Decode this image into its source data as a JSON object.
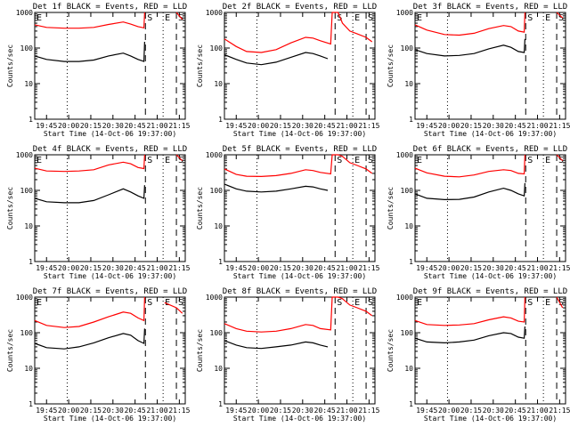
{
  "chart_data": {
    "type": "line",
    "layout": {
      "rows": 3,
      "cols": 3
    },
    "x_tick_labels": [
      "19:45",
      "20:00",
      "20:15",
      "20:30",
      "20:45",
      "21:00",
      "21:15"
    ],
    "x_label": "Start Time (14-Oct-06 19:37:00)",
    "y_label": "Counts/sec",
    "y_scale": "log",
    "ylim": [
      1,
      1000
    ],
    "y_tick_labels": [
      "1",
      "10",
      "100",
      "1000"
    ],
    "x_range_minutes": [
      0,
      102
    ],
    "x_ticks_minutes": [
      8,
      23,
      38,
      53,
      68,
      83,
      98
    ],
    "colors": {
      "events": "#000000",
      "lld": "#ff0000"
    },
    "markers": [
      {
        "label": "E",
        "x_minutes": 0,
        "style": "dotted"
      },
      {
        "label": "S",
        "x_minutes": 75,
        "style": "dashed"
      },
      {
        "label": "E",
        "x_minutes": 87,
        "style": "dotted"
      },
      {
        "label": "S",
        "x_minutes": 96,
        "style": "dashed"
      }
    ],
    "panels": [
      {
        "title": "Det 1f BLACK = Events, RED = LLD",
        "markers_shown": [
          0,
          1,
          2,
          3
        ],
        "dot_x": 22,
        "series": [
          {
            "name": "BLACK = Events",
            "x": [
              0,
              8,
              20,
              30,
              40,
              50,
              60,
              65,
              70,
              74,
              74.5
            ],
            "values": [
              60,
              48,
              42,
              42,
              46,
              60,
              72,
              60,
              48,
              42,
              150
            ]
          },
          {
            "name": "RED = LLD",
            "x": [
              0,
              8,
              20,
              30,
              40,
              50,
              60,
              65,
              70,
              74,
              74.5
            ],
            "values": [
              450,
              380,
              360,
              360,
              380,
              460,
              540,
              470,
              400,
              370,
              1000
            ],
            "extra": {
              "x": [
                96,
                100
              ],
              "values": [
                1000,
                640
              ]
            }
          }
        ]
      },
      {
        "title": "Det 2f BLACK = Events, RED = LLD",
        "markers_shown": [
          1,
          2,
          3
        ],
        "dot_x": 22,
        "series": [
          {
            "name": "BLACK = Events",
            "x": [
              0,
              8,
              15,
              25,
              35,
              45,
              55,
              60,
              65,
              70
            ],
            "values": [
              65,
              48,
              38,
              34,
              40,
              55,
              75,
              70,
              60,
              50
            ]
          },
          {
            "name": "RED = LLD",
            "x": [
              0,
              8,
              15,
              25,
              35,
              45,
              55,
              60,
              65,
              72,
              73,
              77,
              80,
              85,
              90,
              96,
              100
            ],
            "values": [
              180,
              110,
              80,
              75,
              90,
              140,
              200,
              190,
              160,
              130,
              1000,
              1000,
              500,
              300,
              250,
              200,
              150
            ]
          }
        ]
      },
      {
        "title": "Det 3f BLACK = Events, RED = LLD",
        "markers_shown": [
          0,
          1,
          2,
          3
        ],
        "dot_x": 22,
        "series": [
          {
            "name": "BLACK = Events",
            "x": [
              0,
              8,
              20,
              30,
              40,
              50,
              60,
              65,
              70,
              74,
              74.5
            ],
            "values": [
              90,
              70,
              60,
              62,
              70,
              95,
              120,
              105,
              80,
              75,
              180
            ]
          },
          {
            "name": "RED = LLD",
            "x": [
              0,
              8,
              20,
              30,
              40,
              50,
              60,
              65,
              70,
              74,
              74.5
            ],
            "values": [
              450,
              320,
              240,
              230,
              260,
              350,
              430,
              400,
              300,
              280,
              1000
            ],
            "extra": {
              "x": [
                96,
                100
              ],
              "values": [
                1000,
                700
              ]
            }
          }
        ]
      },
      {
        "title": "Det 4f BLACK = Events, RED = LLD",
        "markers_shown": [
          0,
          1,
          2,
          3
        ],
        "dot_x": 22,
        "series": [
          {
            "name": "BLACK = Events",
            "x": [
              0,
              8,
              20,
              30,
              40,
              50,
              60,
              65,
              70,
              74,
              74.5
            ],
            "values": [
              60,
              48,
              45,
              45,
              52,
              75,
              110,
              90,
              70,
              60,
              140
            ]
          },
          {
            "name": "RED = LLD",
            "x": [
              0,
              8,
              20,
              30,
              40,
              50,
              60,
              65,
              70,
              74,
              74.5
            ],
            "values": [
              420,
              350,
              340,
              350,
              380,
              520,
              620,
              560,
              440,
              410,
              1000
            ],
            "extra": {
              "x": [
                96,
                100
              ],
              "values": [
                1000,
                680
              ]
            }
          }
        ]
      },
      {
        "title": "Det 5f BLACK = Events, RED = LLD",
        "markers_shown": [
          1,
          2,
          3
        ],
        "dot_x": 22,
        "series": [
          {
            "name": "BLACK = Events",
            "x": [
              0,
              8,
              15,
              25,
              35,
              45,
              55,
              60,
              65,
              70
            ],
            "values": [
              150,
              110,
              95,
              90,
              95,
              110,
              130,
              125,
              110,
              100
            ]
          },
          {
            "name": "RED = LLD",
            "x": [
              0,
              8,
              15,
              25,
              35,
              45,
              55,
              60,
              65,
              72,
              73,
              77,
              80,
              85,
              90,
              96,
              100
            ],
            "values": [
              400,
              280,
              250,
              245,
              260,
              300,
              380,
              360,
              320,
              290,
              1000,
              1000,
              900,
              600,
              500,
              400,
              300
            ]
          }
        ]
      },
      {
        "title": "Det 6f BLACK = Events, RED = LLD",
        "markers_shown": [
          0,
          1,
          2,
          3
        ],
        "dot_x": 22,
        "series": [
          {
            "name": "BLACK = Events",
            "x": [
              0,
              8,
              20,
              30,
              40,
              50,
              60,
              65,
              70,
              74,
              74.5
            ],
            "values": [
              80,
              60,
              55,
              56,
              65,
              90,
              115,
              100,
              80,
              70,
              160
            ]
          },
          {
            "name": "RED = LLD",
            "x": [
              0,
              8,
              20,
              30,
              40,
              50,
              60,
              65,
              70,
              74,
              74.5
            ],
            "values": [
              420,
              310,
              250,
              240,
              270,
              340,
              380,
              360,
              300,
              290,
              1000
            ],
            "extra": {
              "x": [
                96,
                100
              ],
              "values": [
                1000,
                680
              ]
            }
          }
        ]
      },
      {
        "title": "Det 7f BLACK = Events, RED = LLD",
        "markers_shown": [
          0,
          1,
          2,
          3
        ],
        "dot_x": 22,
        "series": [
          {
            "name": "BLACK = Events",
            "x": [
              0,
              8,
              20,
              30,
              40,
              50,
              60,
              65,
              70,
              74,
              74.5
            ],
            "values": [
              50,
              38,
              35,
              40,
              52,
              72,
              95,
              85,
              60,
              50,
              130
            ]
          },
          {
            "name": "RED = LLD",
            "x": [
              0,
              8,
              20,
              30,
              40,
              50,
              60,
              65,
              70,
              74,
              74.5
            ],
            "values": [
              220,
              160,
              140,
              150,
              200,
              280,
              380,
              350,
              260,
              220,
              1000
            ],
            "extra": {
              "x": [
                88,
                96,
                100
              ],
              "values": [
                700,
                500,
                350
              ]
            }
          }
        ]
      },
      {
        "title": "Det 8f BLACK = Events, RED = LLD",
        "markers_shown": [
          1,
          2,
          3
        ],
        "dot_x": 22,
        "series": [
          {
            "name": "BLACK = Events",
            "x": [
              0,
              8,
              15,
              25,
              35,
              45,
              55,
              60,
              65,
              70
            ],
            "values": [
              60,
              45,
              38,
              36,
              40,
              45,
              55,
              52,
              45,
              40
            ]
          },
          {
            "name": "RED = LLD",
            "x": [
              0,
              8,
              15,
              25,
              35,
              45,
              55,
              60,
              65,
              72,
              73,
              77,
              80,
              85,
              90,
              96,
              100
            ],
            "values": [
              180,
              130,
              110,
              105,
              110,
              130,
              170,
              160,
              130,
              120,
              1000,
              1000,
              900,
              600,
              500,
              400,
              300
            ]
          }
        ]
      },
      {
        "title": "Det 9f BLACK = Events, RED = LLD",
        "markers_shown": [
          0,
          1,
          2,
          3
        ],
        "dot_x": 22,
        "series": [
          {
            "name": "BLACK = Events",
            "x": [
              0,
              8,
              20,
              30,
              40,
              50,
              60,
              65,
              70,
              74,
              74.5
            ],
            "values": [
              70,
              55,
              52,
              55,
              62,
              82,
              100,
              95,
              75,
              70,
              150
            ]
          },
          {
            "name": "RED = LLD",
            "x": [
              0,
              8,
              20,
              30,
              40,
              50,
              60,
              65,
              70,
              74,
              74.5
            ],
            "values": [
              220,
              170,
              160,
              165,
              180,
              230,
              280,
              260,
              210,
              200,
              1000
            ],
            "extra": {
              "x": [
                96,
                100
              ],
              "values": [
                1000,
                500
              ]
            }
          }
        ]
      }
    ]
  }
}
